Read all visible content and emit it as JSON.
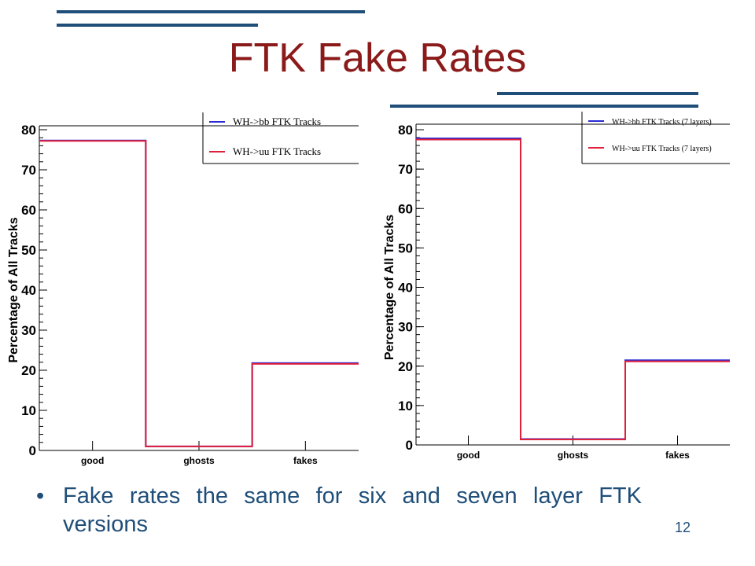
{
  "slide": {
    "title": "FTK Fake Rates",
    "bullet": "Fake rates the same for six and seven layer FTK versions",
    "page_number": "12",
    "accent_color": "#1f4e79",
    "title_color": "#8b1a1a"
  },
  "chart_data": [
    {
      "type": "line",
      "style": "step-histogram",
      "categories": [
        "good",
        "ghosts",
        "fakes"
      ],
      "ylabel": "Percentage of All Tracks",
      "ylim": [
        0,
        80
      ],
      "yticks": [
        "0",
        "10",
        "20",
        "30",
        "40",
        "50",
        "60",
        "70",
        "80"
      ],
      "legend_position": "top-right",
      "series": [
        {
          "name": "WH->bb FTK Tracks",
          "color": "#2b2bd6",
          "values": [
            77.3,
            1.0,
            21.8
          ]
        },
        {
          "name": "WH->uu FTK Tracks",
          "color": "#e0203a",
          "values": [
            77.2,
            1.0,
            21.6
          ]
        }
      ]
    },
    {
      "type": "line",
      "style": "step-histogram",
      "categories": [
        "good",
        "ghosts",
        "fakes"
      ],
      "ylabel": "Percentage of All Tracks",
      "ylim": [
        0,
        80
      ],
      "yticks": [
        "0",
        "10",
        "20",
        "30",
        "40",
        "50",
        "60",
        "70",
        "80"
      ],
      "legend_position": "top-right",
      "series": [
        {
          "name": "WH->bb FTK Tracks (7 layers)",
          "color": "#2b2bd6",
          "values": [
            77.8,
            1.5,
            21.5
          ]
        },
        {
          "name": "WH->uu FTK Tracks (7 layers)",
          "color": "#e0203a",
          "values": [
            77.5,
            1.4,
            21.2
          ]
        }
      ]
    }
  ]
}
